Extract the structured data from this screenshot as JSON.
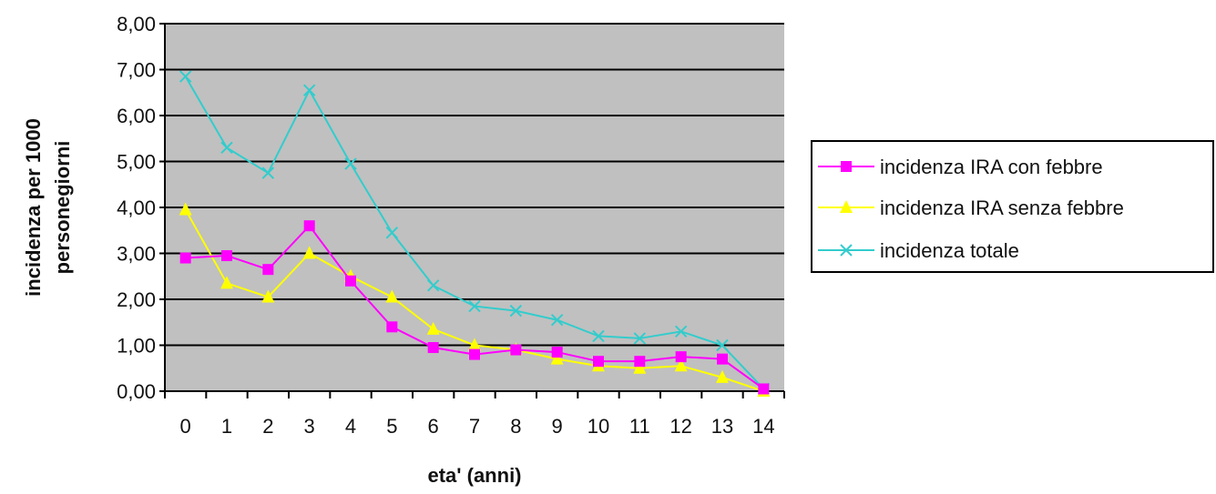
{
  "chart_data": {
    "type": "line",
    "categories": [
      "0",
      "1",
      "2",
      "3",
      "4",
      "5",
      "6",
      "7",
      "8",
      "9",
      "10",
      "11",
      "12",
      "13",
      "14"
    ],
    "xlabel": "eta' (anni)",
    "ylabel": [
      "incidenza per 1000",
      "personegiorni"
    ],
    "ylim": [
      0,
      8
    ],
    "yticks": [
      "0,00",
      "1,00",
      "2,00",
      "3,00",
      "4,00",
      "5,00",
      "6,00",
      "7,00",
      "8,00"
    ],
    "grid": "horizontal",
    "legend_position": "right",
    "plot_background": "#c0c0c0",
    "series": [
      {
        "name": "incidenza IRA con febbre",
        "color": "#ff00ff",
        "marker": "square",
        "values": [
          2.9,
          2.95,
          2.65,
          3.6,
          2.4,
          1.4,
          0.95,
          0.8,
          0.9,
          0.85,
          0.65,
          0.65,
          0.75,
          0.7,
          0.05
        ]
      },
      {
        "name": "incidenza IRA senza febbre",
        "color": "#ffff00",
        "marker": "triangle",
        "values": [
          3.95,
          2.35,
          2.05,
          3.0,
          2.5,
          2.05,
          1.35,
          1.0,
          0.9,
          0.7,
          0.55,
          0.5,
          0.55,
          0.3,
          0.0
        ]
      },
      {
        "name": "incidenza totale",
        "color": "#33cccc",
        "marker": "x",
        "values": [
          6.85,
          5.3,
          4.75,
          6.55,
          4.95,
          3.45,
          2.3,
          1.85,
          1.75,
          1.55,
          1.2,
          1.15,
          1.3,
          1.0,
          0.05
        ]
      }
    ]
  }
}
